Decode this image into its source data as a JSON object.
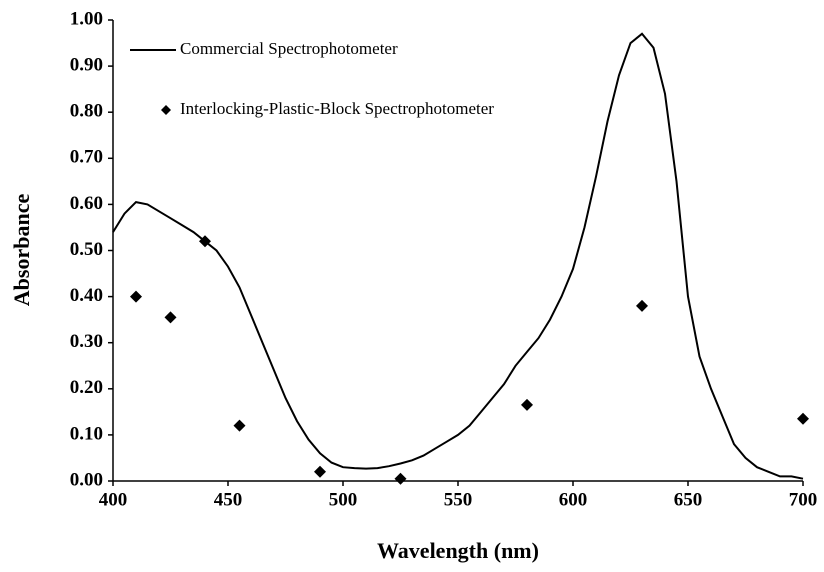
{
  "chart_data": {
    "type": "line",
    "xlabel": "Wavelength (nm)",
    "ylabel": "Absorbance",
    "xlim": [
      400,
      700
    ],
    "xticks": [
      400,
      450,
      500,
      550,
      600,
      650,
      700
    ],
    "ylim": [
      0,
      1
    ],
    "yticks": [
      {
        "value": 0,
        "label": "0.00"
      },
      {
        "value": 0.1,
        "label": "0.10"
      },
      {
        "value": 0.2,
        "label": "0.20"
      },
      {
        "value": 0.3,
        "label": "0.30"
      },
      {
        "value": 0.4,
        "label": "0.40"
      },
      {
        "value": 0.5,
        "label": "0.50"
      },
      {
        "value": 0.6,
        "label": "0.60"
      },
      {
        "value": 0.7,
        "label": "0.70"
      },
      {
        "value": 0.8,
        "label": "0.80"
      },
      {
        "value": 0.9,
        "label": "0.90"
      },
      {
        "value": 1,
        "label": "1.00"
      }
    ],
    "grid": false,
    "legend": "upper left",
    "series": [
      {
        "name": "Commercial Spectrophotometer",
        "type": "line",
        "color": "#000000",
        "x": [
          400,
          405,
          410,
          415,
          420,
          425,
          430,
          435,
          440,
          445,
          450,
          455,
          460,
          465,
          470,
          475,
          480,
          485,
          490,
          495,
          500,
          505,
          510,
          515,
          520,
          525,
          530,
          535,
          540,
          545,
          550,
          555,
          560,
          565,
          570,
          575,
          580,
          585,
          590,
          595,
          600,
          605,
          610,
          615,
          620,
          625,
          630,
          635,
          640,
          645,
          650,
          655,
          660,
          665,
          670,
          675,
          680,
          685,
          690,
          695,
          700
        ],
        "values": [
          0.54,
          0.58,
          0.605,
          0.6,
          0.585,
          0.57,
          0.555,
          0.54,
          0.52,
          0.5,
          0.465,
          0.42,
          0.36,
          0.3,
          0.24,
          0.18,
          0.13,
          0.09,
          0.06,
          0.04,
          0.03,
          0.028,
          0.027,
          0.028,
          0.032,
          0.038,
          0.045,
          0.055,
          0.07,
          0.085,
          0.1,
          0.12,
          0.15,
          0.18,
          0.21,
          0.25,
          0.28,
          0.31,
          0.35,
          0.4,
          0.46,
          0.55,
          0.66,
          0.78,
          0.88,
          0.95,
          0.97,
          0.94,
          0.84,
          0.65,
          0.4,
          0.27,
          0.2,
          0.14,
          0.08,
          0.05,
          0.03,
          0.02,
          0.01,
          0.01,
          0.005
        ]
      },
      {
        "name": "Interlocking-Plastic-Block Spectrophotometer",
        "type": "scatter",
        "color": "#000000",
        "x": [
          410,
          425,
          440,
          455,
          490,
          525,
          580,
          630,
          700
        ],
        "values": [
          0.4,
          0.355,
          0.52,
          0.12,
          0.02,
          0.005,
          0.165,
          0.38,
          0.135
        ]
      }
    ]
  }
}
